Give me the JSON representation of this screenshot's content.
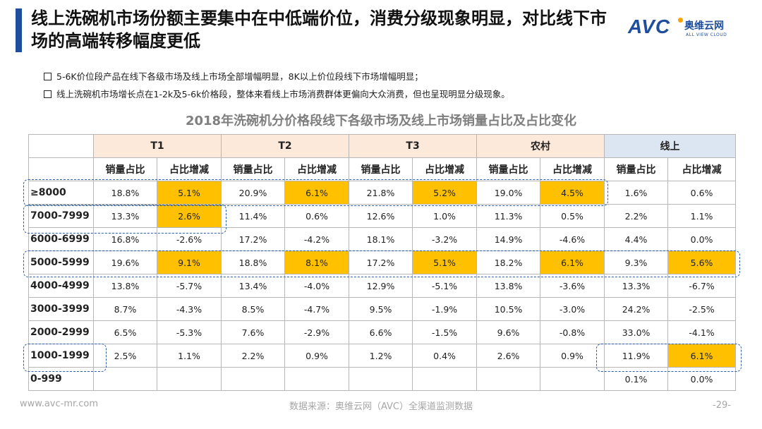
{
  "title": "线上洗碗机市场份额主要集中在中低端价位，消费分级现象明显，对比线下市场的高端转移幅度更低",
  "logo": {
    "mark": "AVC",
    "cn": "奥维云网",
    "en": "ALL VIEW CLOUD"
  },
  "bullets": [
    "5-6K价位段产品在线下各级市场及线上市场全部增幅明显，8K以上价位段线下市场增幅明显；",
    "线上洗碗机市场增长点在1-2k及5-6k价格段，整体来看线上市场消费群体更偏向大众消费，但也呈现明显分级现象。"
  ],
  "table": {
    "title": "2018年洗碗机分价格段线下各级市场及线上市场销量占比及占比变化",
    "groups": [
      "T1",
      "T2",
      "T3",
      "农村",
      "线上"
    ],
    "sub_headers": [
      "销量占比",
      "占比增减",
      "销量占比",
      "占比增减",
      "销量占比",
      "占比增减",
      "销量占比",
      "占比增减",
      "销量占比",
      "占比增减"
    ],
    "rows": [
      {
        "label": "≥8000",
        "cells": [
          "18.8%",
          "5.1%",
          "20.9%",
          "6.1%",
          "21.8%",
          "5.2%",
          "19.0%",
          "4.5%",
          "1.6%",
          "0.6%"
        ]
      },
      {
        "label": "7000-7999",
        "cells": [
          "13.3%",
          "2.6%",
          "11.4%",
          "0.6%",
          "12.6%",
          "1.0%",
          "11.3%",
          "0.5%",
          "2.2%",
          "1.1%"
        ]
      },
      {
        "label": "6000-6999",
        "cells": [
          "16.8%",
          "-2.6%",
          "17.2%",
          "-4.2%",
          "18.1%",
          "-3.2%",
          "14.9%",
          "-4.6%",
          "4.4%",
          "0.0%"
        ]
      },
      {
        "label": "5000-5999",
        "cells": [
          "19.6%",
          "9.1%",
          "18.8%",
          "8.1%",
          "17.2%",
          "5.1%",
          "18.2%",
          "6.1%",
          "9.3%",
          "5.6%"
        ]
      },
      {
        "label": "4000-4999",
        "cells": [
          "13.8%",
          "-5.7%",
          "13.4%",
          "-4.0%",
          "12.9%",
          "-5.1%",
          "13.8%",
          "-3.6%",
          "13.3%",
          "-6.7%"
        ]
      },
      {
        "label": "3000-3999",
        "cells": [
          "8.7%",
          "-4.3%",
          "8.5%",
          "-4.7%",
          "9.5%",
          "-1.9%",
          "10.5%",
          "-3.0%",
          "24.2%",
          "-2.5%"
        ]
      },
      {
        "label": "2000-2999",
        "cells": [
          "6.5%",
          "-5.3%",
          "7.6%",
          "-2.9%",
          "6.6%",
          "-1.5%",
          "9.6%",
          "-0.8%",
          "33.0%",
          "-4.1%"
        ]
      },
      {
        "label": "1000-1999",
        "cells": [
          "2.5%",
          "1.1%",
          "2.2%",
          "0.9%",
          "1.2%",
          "0.4%",
          "2.6%",
          "0.9%",
          "11.9%",
          "6.1%"
        ]
      },
      {
        "label": "0-999",
        "cells": [
          "",
          "",
          "",
          "",
          "",
          "",
          "",
          "",
          "0.1%",
          "0.0%"
        ]
      }
    ]
  },
  "footer": {
    "website": "www.avc-mr.com",
    "source": "数据来源：奥维云网（AVC）全渠道监测数据",
    "page": "-29-"
  },
  "colors": {
    "accent": "#1f4e9c",
    "highlight": "#ffc000",
    "offline_header": "#fde9d9",
    "online_header": "#dce6f2"
  }
}
